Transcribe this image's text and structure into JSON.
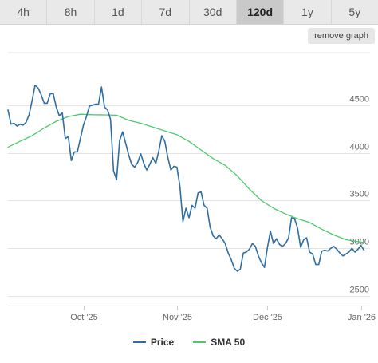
{
  "tabs": [
    {
      "label": "4h",
      "active": false
    },
    {
      "label": "8h",
      "active": false
    },
    {
      "label": "1d",
      "active": false
    },
    {
      "label": "7d",
      "active": false
    },
    {
      "label": "30d",
      "active": false
    },
    {
      "label": "120d",
      "active": true
    },
    {
      "label": "1y",
      "active": false
    },
    {
      "label": "5y",
      "active": false
    }
  ],
  "remove_graph_label": "remove graph",
  "colors": {
    "price": "#2f6ea5",
    "sma": "#4ccb6e",
    "grid": "#e4e4e4",
    "axis": "#cccccc"
  },
  "chart_data": {
    "type": "line",
    "x_start": "2025-09-06",
    "x_end": "2026-01-04",
    "ylim": [
      2400,
      5050
    ],
    "y_ticks": [
      2500,
      3000,
      3500,
      4000,
      4500
    ],
    "x_ticks": [
      {
        "date": "2025-10-01",
        "label": "Oct '25"
      },
      {
        "date": "2025-11-01",
        "label": "Nov '25"
      },
      {
        "date": "2025-12-01",
        "label": "Dec '25"
      },
      {
        "date": "2026-01-01",
        "label": "Jan '26"
      }
    ],
    "grid": true,
    "legend_position": "bottom",
    "series": [
      {
        "name": "Price",
        "color": "#2f6ea5",
        "points": [
          [
            "2025-09-06",
            4450
          ],
          [
            "2025-09-07",
            4300
          ],
          [
            "2025-09-08",
            4310
          ],
          [
            "2025-09-09",
            4280
          ],
          [
            "2025-09-10",
            4300
          ],
          [
            "2025-09-11",
            4290
          ],
          [
            "2025-09-12",
            4320
          ],
          [
            "2025-09-13",
            4400
          ],
          [
            "2025-09-14",
            4550
          ],
          [
            "2025-09-15",
            4710
          ],
          [
            "2025-09-16",
            4680
          ],
          [
            "2025-09-17",
            4610
          ],
          [
            "2025-09-18",
            4520
          ],
          [
            "2025-09-19",
            4520
          ],
          [
            "2025-09-20",
            4620
          ],
          [
            "2025-09-21",
            4620
          ],
          [
            "2025-09-22",
            4480
          ],
          [
            "2025-09-23",
            4390
          ],
          [
            "2025-09-24",
            4420
          ],
          [
            "2025-09-25",
            4150
          ],
          [
            "2025-09-26",
            4170
          ],
          [
            "2025-09-27",
            3920
          ],
          [
            "2025-09-28",
            4010
          ],
          [
            "2025-09-29",
            4010
          ],
          [
            "2025-09-30",
            4150
          ],
          [
            "2025-10-01",
            4290
          ],
          [
            "2025-10-02",
            4380
          ],
          [
            "2025-10-03",
            4490
          ],
          [
            "2025-10-04",
            4500
          ],
          [
            "2025-10-05",
            4510
          ],
          [
            "2025-10-06",
            4510
          ],
          [
            "2025-10-07",
            4690
          ],
          [
            "2025-10-08",
            4480
          ],
          [
            "2025-10-09",
            4450
          ],
          [
            "2025-10-10",
            4350
          ],
          [
            "2025-10-11",
            3810
          ],
          [
            "2025-10-12",
            3720
          ],
          [
            "2025-10-13",
            4130
          ],
          [
            "2025-10-14",
            4220
          ],
          [
            "2025-10-15",
            4100
          ],
          [
            "2025-10-16",
            3980
          ],
          [
            "2025-10-17",
            3880
          ],
          [
            "2025-10-18",
            3850
          ],
          [
            "2025-10-19",
            3900
          ],
          [
            "2025-10-20",
            3990
          ],
          [
            "2025-10-21",
            3890
          ],
          [
            "2025-10-22",
            3820
          ],
          [
            "2025-10-23",
            3880
          ],
          [
            "2025-10-24",
            3950
          ],
          [
            "2025-10-25",
            3890
          ],
          [
            "2025-10-26",
            4020
          ],
          [
            "2025-10-27",
            4180
          ],
          [
            "2025-10-28",
            4120
          ],
          [
            "2025-10-29",
            3950
          ],
          [
            "2025-10-30",
            3820
          ],
          [
            "2025-10-31",
            3860
          ],
          [
            "2025-11-01",
            3850
          ],
          [
            "2025-11-02",
            3650
          ],
          [
            "2025-11-03",
            3280
          ],
          [
            "2025-11-04",
            3420
          ],
          [
            "2025-11-05",
            3320
          ],
          [
            "2025-11-06",
            3450
          ],
          [
            "2025-11-07",
            3420
          ],
          [
            "2025-11-08",
            3580
          ],
          [
            "2025-11-09",
            3590
          ],
          [
            "2025-11-10",
            3450
          ],
          [
            "2025-11-11",
            3420
          ],
          [
            "2025-11-12",
            3220
          ],
          [
            "2025-11-13",
            3130
          ],
          [
            "2025-11-14",
            3100
          ],
          [
            "2025-11-15",
            3140
          ],
          [
            "2025-11-16",
            3100
          ],
          [
            "2025-11-17",
            3050
          ],
          [
            "2025-11-18",
            2950
          ],
          [
            "2025-11-19",
            2880
          ],
          [
            "2025-11-20",
            2790
          ],
          [
            "2025-11-21",
            2760
          ],
          [
            "2025-11-22",
            2780
          ],
          [
            "2025-11-23",
            2950
          ],
          [
            "2025-11-24",
            2960
          ],
          [
            "2025-11-25",
            2990
          ],
          [
            "2025-11-26",
            3050
          ],
          [
            "2025-11-27",
            3020
          ],
          [
            "2025-11-28",
            2920
          ],
          [
            "2025-11-29",
            2850
          ],
          [
            "2025-11-30",
            2800
          ],
          [
            "2025-12-01",
            3010
          ],
          [
            "2025-12-02",
            3180
          ],
          [
            "2025-12-03",
            3050
          ],
          [
            "2025-12-04",
            3100
          ],
          [
            "2025-12-05",
            3040
          ],
          [
            "2025-12-06",
            3020
          ],
          [
            "2025-12-07",
            3050
          ],
          [
            "2025-12-08",
            3110
          ],
          [
            "2025-12-09",
            3320
          ],
          [
            "2025-12-10",
            3310
          ],
          [
            "2025-12-11",
            3210
          ],
          [
            "2025-12-12",
            3010
          ],
          [
            "2025-12-13",
            3090
          ],
          [
            "2025-12-14",
            3110
          ],
          [
            "2025-12-15",
            2960
          ],
          [
            "2025-12-16",
            2940
          ],
          [
            "2025-12-17",
            2830
          ],
          [
            "2025-12-18",
            2830
          ],
          [
            "2025-12-19",
            2970
          ],
          [
            "2025-12-20",
            2980
          ],
          [
            "2025-12-21",
            2970
          ],
          [
            "2025-12-22",
            3000
          ],
          [
            "2025-12-23",
            3020
          ],
          [
            "2025-12-24",
            2990
          ],
          [
            "2025-12-25",
            2950
          ],
          [
            "2025-12-26",
            2920
          ],
          [
            "2025-12-27",
            2940
          ],
          [
            "2025-12-28",
            2960
          ],
          [
            "2025-12-29",
            3000
          ],
          [
            "2025-12-30",
            2960
          ],
          [
            "2025-12-31",
            2990
          ],
          [
            "2026-01-01",
            3030
          ],
          [
            "2026-01-02",
            2980
          ]
        ]
      },
      {
        "name": "SMA 50",
        "color": "#4ccb6e",
        "points": [
          [
            "2025-09-06",
            4060
          ],
          [
            "2025-09-10",
            4120
          ],
          [
            "2025-09-14",
            4180
          ],
          [
            "2025-09-18",
            4260
          ],
          [
            "2025-09-22",
            4330
          ],
          [
            "2025-09-26",
            4380
          ],
          [
            "2025-09-30",
            4405
          ],
          [
            "2025-10-04",
            4400
          ],
          [
            "2025-10-08",
            4398
          ],
          [
            "2025-10-12",
            4395
          ],
          [
            "2025-10-16",
            4340
          ],
          [
            "2025-10-20",
            4310
          ],
          [
            "2025-10-24",
            4270
          ],
          [
            "2025-10-28",
            4230
          ],
          [
            "2025-11-01",
            4190
          ],
          [
            "2025-11-05",
            4120
          ],
          [
            "2025-11-09",
            4030
          ],
          [
            "2025-11-13",
            3940
          ],
          [
            "2025-11-17",
            3870
          ],
          [
            "2025-11-21",
            3760
          ],
          [
            "2025-11-25",
            3620
          ],
          [
            "2025-11-29",
            3500
          ],
          [
            "2025-12-03",
            3420
          ],
          [
            "2025-12-07",
            3360
          ],
          [
            "2025-12-11",
            3310
          ],
          [
            "2025-12-15",
            3270
          ],
          [
            "2025-12-19",
            3200
          ],
          [
            "2025-12-23",
            3140
          ],
          [
            "2025-12-27",
            3090
          ],
          [
            "2026-01-02",
            3060
          ]
        ]
      }
    ]
  }
}
